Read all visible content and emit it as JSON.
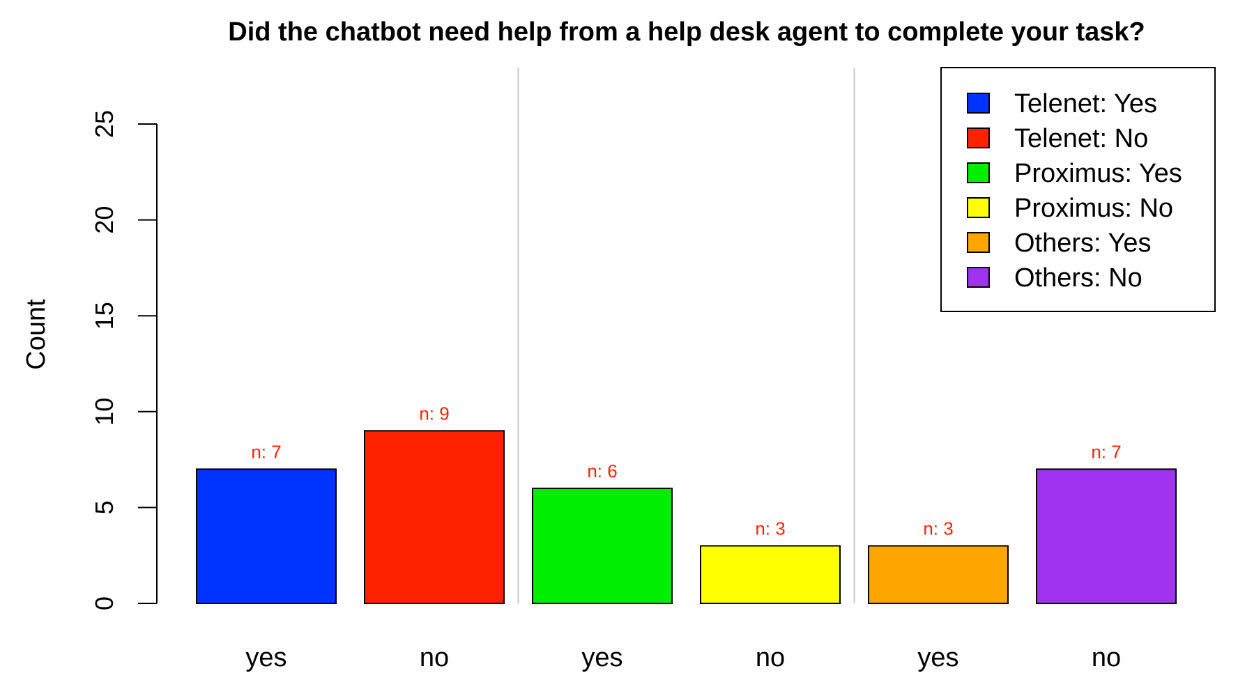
{
  "chart_data": {
    "type": "bar",
    "title": "Did the chatbot need help from a help desk agent to complete your task?",
    "ylabel": "Count",
    "xlabel": "",
    "ylim": [
      0,
      25
    ],
    "yticks": [
      0,
      5,
      10,
      15,
      20,
      25
    ],
    "categories": [
      "yes",
      "no",
      "yes",
      "no",
      "yes",
      "no"
    ],
    "values": [
      7,
      9,
      6,
      3,
      3,
      7
    ],
    "bar_labels": [
      "n: 7",
      "n: 9",
      "n: 6",
      "n: 3",
      "n: 3",
      "n: 7"
    ],
    "colors": [
      "#0033ff",
      "#ff2200",
      "#00ee00",
      "#ffff00",
      "#ffa500",
      "#a033f0"
    ],
    "groups": [
      "Telenet",
      "Proximus",
      "Others"
    ],
    "legend": {
      "placement": "top-right",
      "entries": [
        {
          "label": "Telenet: Yes",
          "color": "#0033ff"
        },
        {
          "label": "Telenet: No",
          "color": "#ff2200"
        },
        {
          "label": "Proximus: Yes",
          "color": "#00ee00"
        },
        {
          "label": "Proximus: No",
          "color": "#ffff00"
        },
        {
          "label": "Others: Yes",
          "color": "#ffa500"
        },
        {
          "label": "Others: No",
          "color": "#a033f0"
        }
      ]
    },
    "group_separators": true,
    "grid": false
  }
}
